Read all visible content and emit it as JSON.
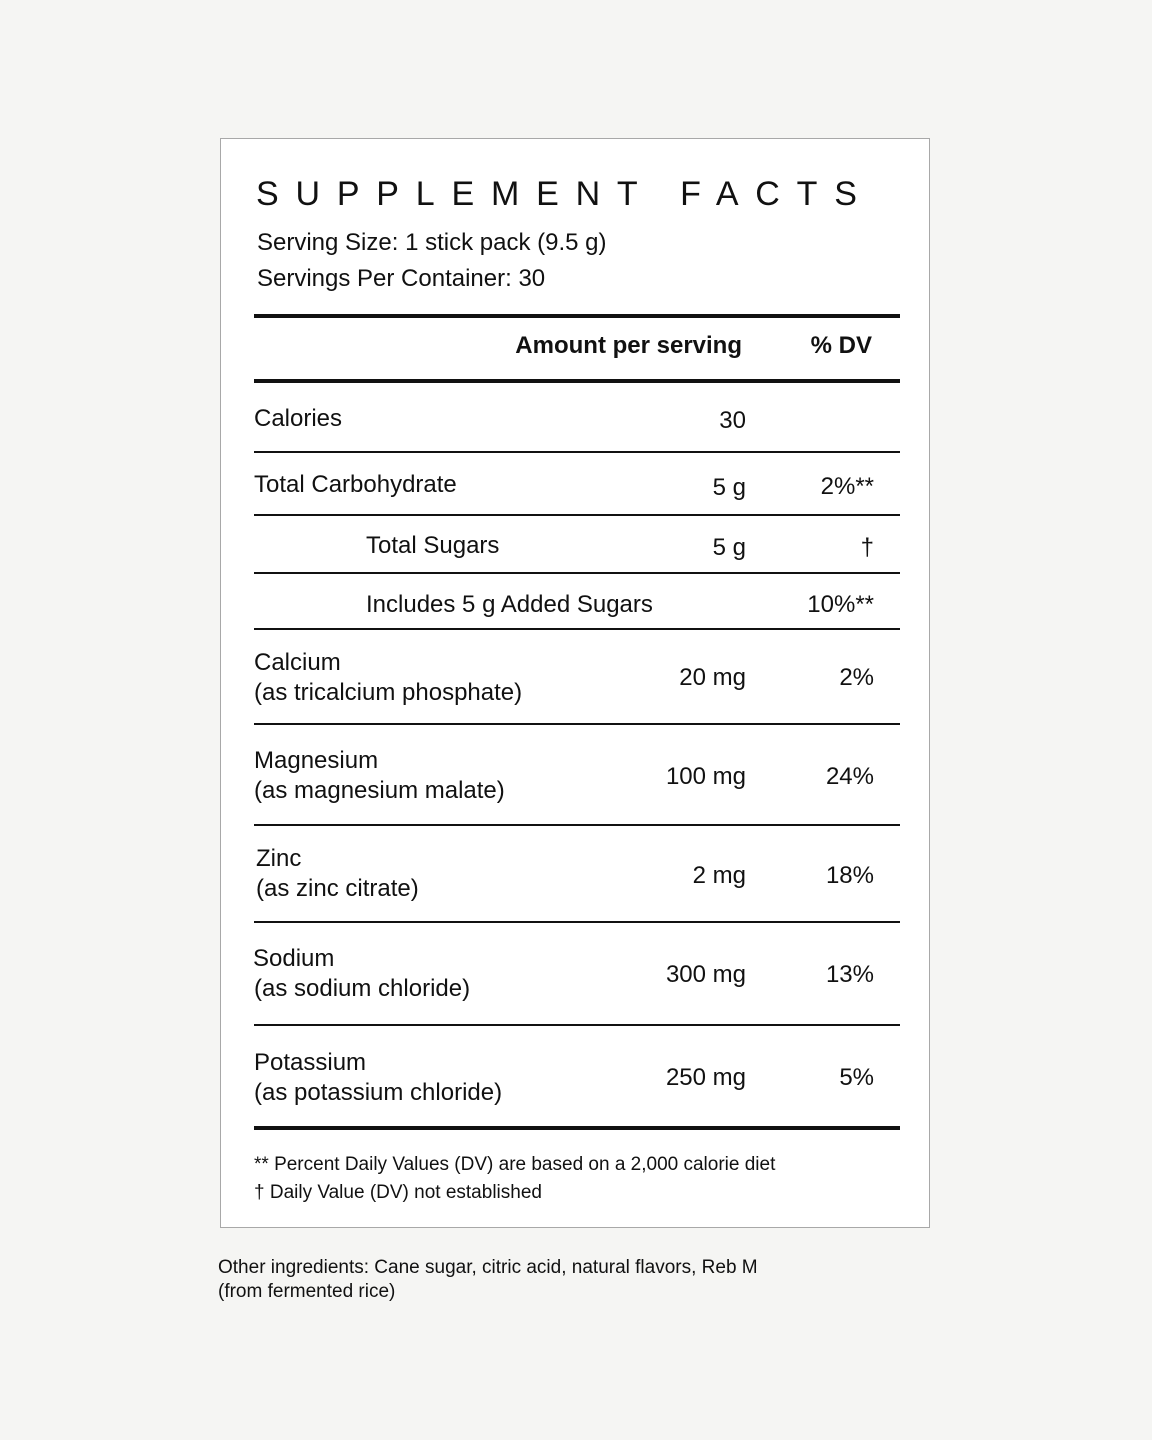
{
  "panel": {
    "title": "SUPPLEMENT FACTS",
    "serving_size": "Serving Size: 1 stick pack (9.5 g)",
    "servings_per_container": "Servings Per Container: 30",
    "header": {
      "amount": "Amount per serving",
      "dv": "% DV"
    },
    "rows": [
      {
        "name": "Calories",
        "form": "",
        "amount": "30",
        "dv": ""
      },
      {
        "name": "Total Carbohydrate",
        "form": "",
        "amount": "5 g",
        "dv": "2%**"
      },
      {
        "name": "Total Sugars",
        "form": "",
        "amount": "5 g",
        "dv": "†"
      },
      {
        "name": "Includes 5 g Added Sugars",
        "form": "",
        "amount": "",
        "dv": "10%**"
      },
      {
        "name": "Calcium",
        "form": "(as tricalcium phosphate)",
        "amount": "20 mg",
        "dv": "2%"
      },
      {
        "name": "Magnesium",
        "form": "(as magnesium malate)",
        "amount": "100 mg",
        "dv": "24%"
      },
      {
        "name": "Zinc",
        "form": "(as zinc citrate)",
        "amount": "2 mg",
        "dv": "18%"
      },
      {
        "name": "Sodium",
        "form": "(as sodium chloride)",
        "amount": "300 mg",
        "dv": "13%"
      },
      {
        "name": "Potassium",
        "form": "(as potassium chloride)",
        "amount": "250 mg",
        "dv": "5%"
      }
    ],
    "footnotes": [
      "** Percent Daily Values (DV) are based on a 2,000 calorie diet",
      "† Daily Value (DV) not established"
    ]
  },
  "other_ingredients": [
    "Other ingredients: Cane sugar, citric acid, natural flavors, Reb M",
    "(from fermented rice)"
  ],
  "colors": {
    "background": "#f5f5f3",
    "panel": "#ffffff",
    "text": "#111111",
    "border": "#a8a8a8"
  }
}
